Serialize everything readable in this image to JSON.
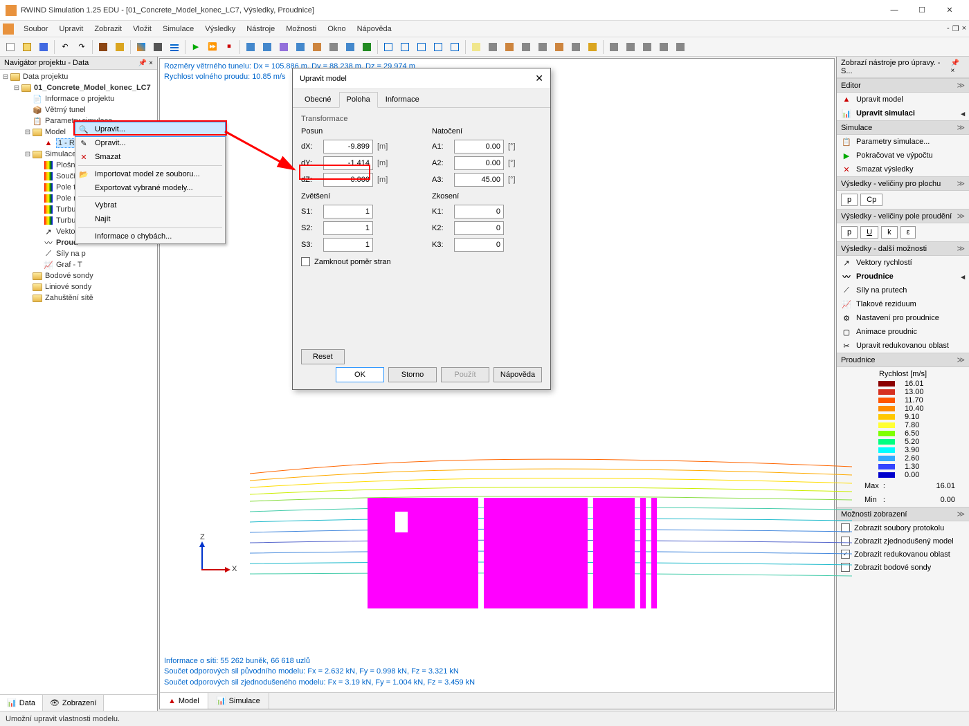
{
  "titlebar": {
    "text": "RWIND Simulation 1.25 EDU - [01_Concrete_Model_konec_LC7, Výsledky, Proudnice]"
  },
  "menubar": {
    "items": [
      "Soubor",
      "Upravit",
      "Zobrazit",
      "Vložit",
      "Simulace",
      "Výsledky",
      "Nástroje",
      "Možnosti",
      "Okno",
      "Nápověda"
    ]
  },
  "left_panel": {
    "title": "Navigátor projektu - Data",
    "root": "Data projektu",
    "project": "01_Concrete_Model_konec_LC7",
    "nodes": {
      "info": "Informace o projektu",
      "tunnel": "Větrný tunel",
      "params": "Parametry simulace",
      "model": "Model",
      "model_item": "1 - RFE",
      "simulace": "Simulace",
      "plosny": "Plošný r",
      "soucin": "Součinit",
      "poletla": "Pole tla",
      "polery": "Pole ryc",
      "turb1": "Turbule",
      "turb2": "Turbule",
      "vektory": "Vektory",
      "proud": "Proud",
      "sily": "Síly na p",
      "graf": "Graf - T",
      "bodove": "Bodové sondy",
      "liniove": "Liniové sondy",
      "zahusteni": "Zahuštění sítě"
    },
    "tabs": {
      "data": "Data",
      "zobrazeni": "Zobrazení"
    }
  },
  "context_menu": {
    "upravit": "Upravit...",
    "opravit": "Opravit...",
    "smazat": "Smazat",
    "import": "Importovat model ze souboru...",
    "export": "Exportovat vybrané modely...",
    "vybrat": "Vybrat",
    "najit": "Najít",
    "chyby": "Informace o chybách..."
  },
  "viewport": {
    "line1": "Rozměry větrného tunelu: Dx = 105.886 m, Dy = 88.238 m, Dz = 29.974 m",
    "line2": "Rychlost volného proudu: 10.85 m/s",
    "bottom1": "Informace o síti: 55 262 buněk, 66 618 uzlů",
    "bottom2": "Součet odporových sil původního modelu: Fx = 2.632 kN, Fy = 0.998 kN, Fz = 3.321 kN",
    "bottom3": "Součet odporových sil zjednodušeného modelu: Fx = 3.19 kN, Fy = 1.004 kN, Fz = 3.459 kN",
    "axis_z": "Z",
    "axis_x": "X",
    "tabs": {
      "model": "Model",
      "simulace": "Simulace"
    }
  },
  "dialog": {
    "title": "Upravit model",
    "tabs": {
      "obecne": "Obecné",
      "poloha": "Poloha",
      "informace": "Informace"
    },
    "group": "Transformace",
    "posun": "Posun",
    "natoceni": "Natočení",
    "zvetseni": "Zvětšení",
    "zkoseni": "Zkosení",
    "dx_label": "dX:",
    "dx_val": "-9.899",
    "m": "[m]",
    "dy_label": "dY:",
    "dy_val": "-1.414",
    "dz_label": "dZ:",
    "dz_val": "0.000",
    "a1_label": "A1:",
    "a1_val": "0.00",
    "deg": "[°]",
    "a2_label": "A2:",
    "a2_val": "0.00",
    "a3_label": "A3:",
    "a3_val": "45.00",
    "s1_label": "S1:",
    "s1_val": "1",
    "s2_label": "S2:",
    "s2_val": "1",
    "s3_label": "S3:",
    "s3_val": "1",
    "k1_label": "K1:",
    "k1_val": "0",
    "k2_label": "K2:",
    "k2_val": "0",
    "k3_label": "K3:",
    "k3_val": "0",
    "lock": "Zamknout poměr stran",
    "reset": "Reset",
    "ok": "OK",
    "storno": "Storno",
    "pouzit": "Použít",
    "napoveda": "Nápověda"
  },
  "right_panel": {
    "title": "Zobrazí nástroje pro úpravy. - S...",
    "editor_hdr": "Editor",
    "upravit_model": "Upravit model",
    "upravit_sim": "Upravit simulaci",
    "simulace_hdr": "Simulace",
    "params": "Parametry simulace...",
    "pokracovat": "Pokračovat ve výpočtu",
    "smazat": "Smazat výsledky",
    "vys_plochu": "Výsledky - veličiny pro plochu",
    "vys_proudeni": "Výsledky - veličiny pole proudění",
    "vys_dalsi": "Výsledky - další možnosti",
    "vektory_rych": "Vektory rychlostí",
    "proudnice": "Proudnice",
    "sily_prutech": "Síly na prutech",
    "tlakove": "Tlakové reziduum",
    "nastaveni": "Nastavení pro proudnice",
    "animace": "Animace proudnic",
    "upravit_red": "Upravit redukovanou oblast",
    "proudnice_hdr": "Proudnice",
    "legend_title": "Rychlost [m/s]",
    "legend_vals": [
      "16.01",
      "13.00",
      "11.70",
      "10.40",
      "9.10",
      "7.80",
      "6.50",
      "5.20",
      "3.90",
      "2.60",
      "1.30",
      "0.00"
    ],
    "legend_colors": [
      "#8b0000",
      "#d62f1f",
      "#ff5500",
      "#ff8c00",
      "#ffc800",
      "#ffff33",
      "#7fff00",
      "#00ff80",
      "#00ffff",
      "#33aaff",
      "#3344ff",
      "#0000cc"
    ],
    "max_label": "Max",
    "max_val": "16.01",
    "min_label": "Min",
    "min_val": "0.00",
    "moznosti_hdr": "Možnosti zobrazení",
    "zobr_protokol": "Zobrazit soubory protokolu",
    "zobr_zjed": "Zobrazit zjednodušený model",
    "zobr_red": "Zobrazit redukovanou oblast",
    "zobr_bod": "Zobrazit bodové sondy",
    "btns1": {
      "p": "p",
      "cp": "Cp"
    },
    "btns2": {
      "p": "p",
      "u": "U",
      "k": "k",
      "e": "ε"
    }
  },
  "statusbar": {
    "text": "Umožní upravit vlastnosti modelu."
  },
  "streamline_colors": [
    "#ff6600",
    "#ffaa00",
    "#ffdd00",
    "#cceE00",
    "#88dd44",
    "#44ccaa",
    "#22bbcc",
    "#4488dd",
    "#5566cc"
  ]
}
